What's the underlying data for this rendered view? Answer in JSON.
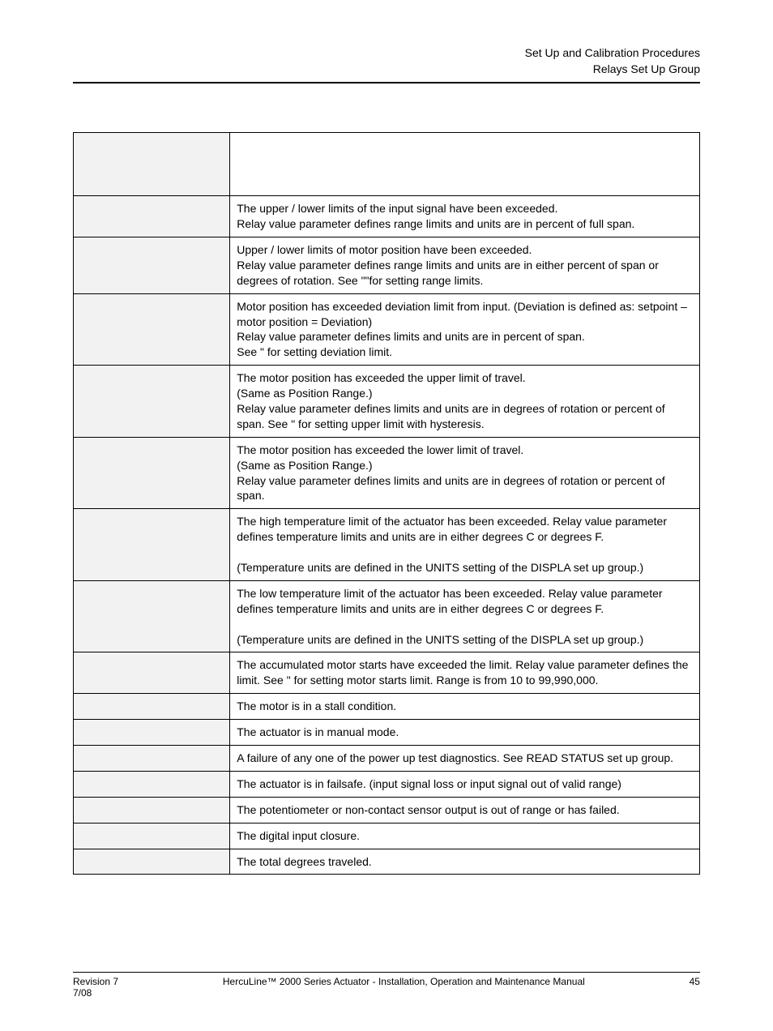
{
  "header": {
    "line1": "Set Up and Calibration Procedures",
    "line2": "Relays Set Up Group"
  },
  "table": {
    "col_left_header": "",
    "col_right_header": "",
    "rows": [
      {
        "label": "",
        "desc": "The upper / lower limits of the input signal have been exceeded.\nRelay value parameter defines range limits and units are in percent of full span."
      },
      {
        "label": "",
        "desc_pre": "Upper / lower limits of motor position have been exceeded.\n Relay value parameter defines range limits and units are in either percent of span or degrees of rotation. See \"",
        "link": "",
        "desc_post": "\"for setting range limits."
      },
      {
        "label": "",
        "desc_pre": "Motor position has exceeded deviation limit from input. (Deviation is defined as: setpoint – motor position = Deviation)\nRelay value parameter defines limits and units are in percent of span.\nSee \"",
        "link": "",
        "desc_post": " for setting deviation limit."
      },
      {
        "label": "",
        "desc_pre": "The motor position has exceeded the upper limit of travel.\n(Same as Position Range.)\nRelay value parameter defines limits and units are in degrees of rotation or percent of span. See \"",
        "link": "",
        "desc_post": " for setting upper limit with hysteresis."
      },
      {
        "label": "",
        "desc": "The motor position has exceeded the lower limit of travel.\n(Same as Position Range.)\nRelay value parameter defines limits and units are in degrees of rotation or percent of span."
      },
      {
        "label": "",
        "desc": "The high temperature limit of the actuator has been exceeded.  Relay value parameter defines temperature limits and units are in either degrees C or degrees F.\n\n(Temperature units are defined in the UNITS setting of the DISPLA set up group.)"
      },
      {
        "label": "",
        "desc": "The low temperature limit of the actuator has been exceeded.  Relay value parameter defines temperature limits and units are in either degrees C or degrees F.\n\n(Temperature units are defined in the UNITS setting of the DISPLA set up group.)"
      },
      {
        "label": "",
        "desc_pre": "The accumulated motor starts have exceeded the limit.   Relay value parameter defines the limit.  See \"",
        "link": "",
        "desc_post": " for setting motor starts limit.  Range is from 10 to 99,990,000."
      },
      {
        "label": "",
        "desc": "The motor is in a stall condition."
      },
      {
        "label": "",
        "desc": "The actuator is in manual mode."
      },
      {
        "label": "",
        "desc": "A failure of any one of the power up test diagnostics.  See READ STATUS set up group."
      },
      {
        "label": "",
        "desc": "The actuator is in failsafe. (input signal loss or input signal out of valid range)"
      },
      {
        "label": "",
        "desc": "The potentiometer or non-contact sensor output is out of range or has failed."
      },
      {
        "label": "",
        "desc": "The digital input closure."
      },
      {
        "label": "",
        "desc": "The total degrees traveled."
      }
    ]
  },
  "footer": {
    "rev": "Revision 7",
    "date": "7/08",
    "title": "HercuLine™ 2000 Series Actuator - Installation, Operation and Maintenance Manual",
    "page": "45"
  }
}
